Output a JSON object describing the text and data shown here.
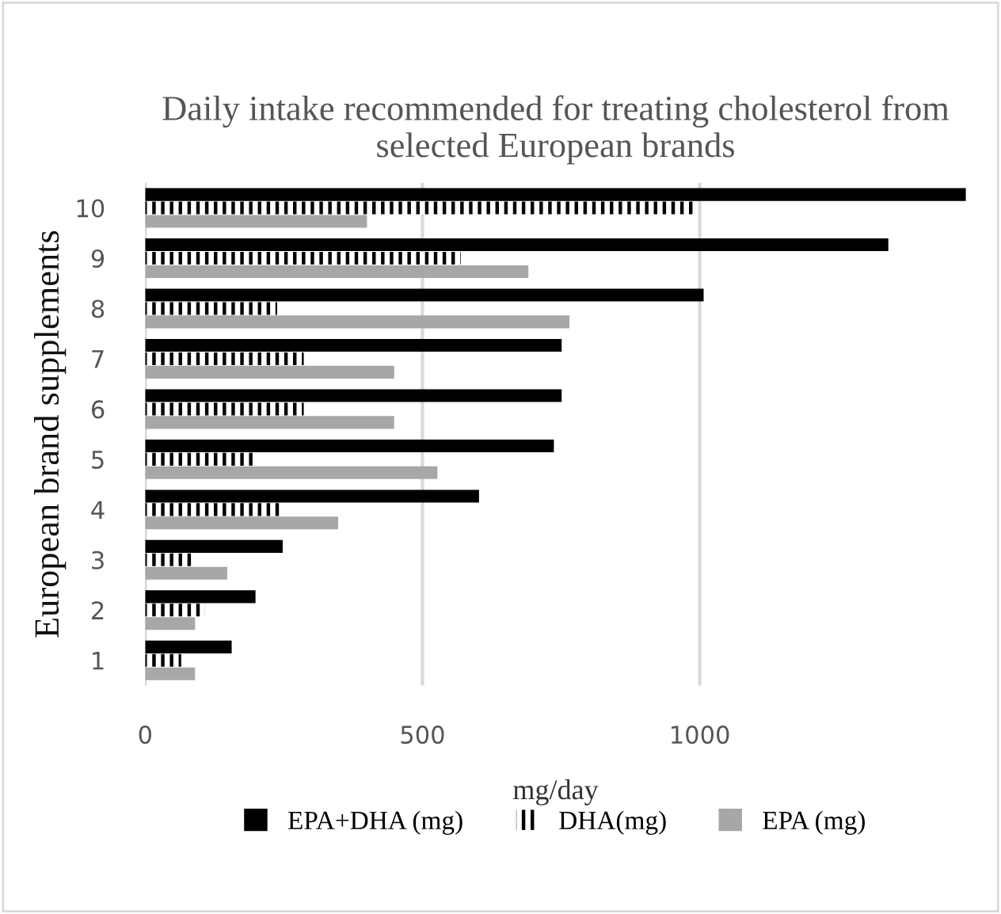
{
  "chart_data": {
    "type": "bar",
    "orientation": "horizontal",
    "title": "Daily intake recommended for treating cholesterol from selected European brands",
    "xlabel": "mg/day",
    "ylabel": "European brand supplements",
    "categories": [
      "10",
      "9",
      "8",
      "7",
      "6",
      "5",
      "4",
      "3",
      "2",
      "1"
    ],
    "series": [
      {
        "name": "EPA+DHA (mg)",
        "color": "#000000",
        "values": [
          1480,
          1340,
          1007,
          751,
          751,
          737,
          602,
          248,
          199,
          156
        ]
      },
      {
        "name": "DHA(mg)",
        "color": "#000000",
        "values": [
          995,
          569,
          238,
          286,
          286,
          197,
          243,
          87,
          108,
          65
        ]
      },
      {
        "name": "EPA (mg)",
        "color": "#a9a6a6",
        "values": [
          400,
          691,
          765,
          449,
          449,
          527,
          348,
          148,
          90,
          90
        ]
      }
    ],
    "xlim": [
      0,
      1480
    ],
    "xticks": [
      0,
      500,
      1000
    ],
    "grid": "x",
    "legend": "bottom"
  }
}
